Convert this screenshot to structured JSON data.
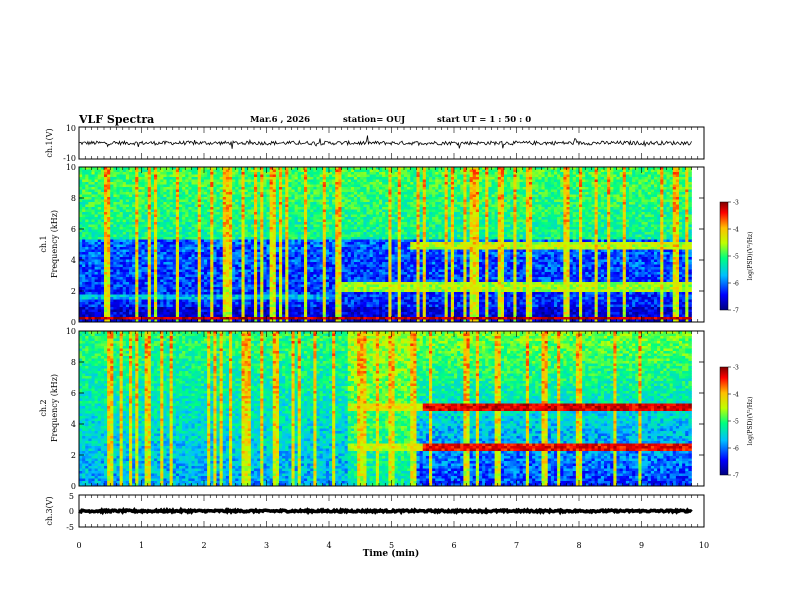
{
  "header": {
    "title": "VLF Spectra",
    "date": "Mar.6 , 2026",
    "station": "station= OUJ",
    "start": "start UT = 1 : 50 : 0"
  },
  "colors": {
    "colormap": [
      "#00007f",
      "#0000ff",
      "#00bfff",
      "#00ff7f",
      "#bfff00",
      "#ffbf00",
      "#ff0000",
      "#7f0000"
    ]
  },
  "chart_data": [
    {
      "type": "line",
      "panel": "ch1-waveform",
      "ylabel": "ch.1(V)",
      "ylim": [
        -10,
        10
      ],
      "yticks": [
        "10",
        "-10"
      ],
      "xlim": [
        0,
        10
      ],
      "baseline": 0,
      "noise_amplitude": 1.2
    },
    {
      "type": "heatmap",
      "panel": "ch1-spectrogram",
      "ylabel": "ch.1\nFrequency (kHz)",
      "ylim": [
        0,
        10
      ],
      "yticks": [
        "0",
        "2",
        "4",
        "6",
        "8",
        "10"
      ],
      "xlim": [
        0,
        9.8
      ],
      "colorbar": {
        "label": "log(PSD)(V²/Hz)",
        "ticks": [
          "-3",
          "-4",
          "-5",
          "-6",
          "-7"
        ],
        "range": [
          -7,
          -3
        ]
      },
      "bands": [
        {
          "x0": 0,
          "x1": 9.8,
          "f0": 0.2,
          "f1": 0.4,
          "level": -3.3
        },
        {
          "x0": 0,
          "x1": 4.2,
          "f0": 1.4,
          "f1": 1.8,
          "level": -5.8
        },
        {
          "x0": 4.2,
          "x1": 9.8,
          "f0": 2.0,
          "f1": 2.6,
          "level": -4.8
        },
        {
          "x0": 5.3,
          "x1": 9.8,
          "f0": 4.6,
          "f1": 5.2,
          "level": -4.7
        }
      ]
    },
    {
      "type": "heatmap",
      "panel": "ch2-spectrogram",
      "ylabel": "ch.2\nFrequency (kHz)",
      "ylim": [
        0,
        10
      ],
      "yticks": [
        "0",
        "2",
        "4",
        "6",
        "8",
        "10"
      ],
      "xlim": [
        0,
        9.8
      ],
      "colorbar": {
        "label": "log(PSD)(V²/Hz)",
        "ticks": [
          "-3",
          "-4",
          "-5",
          "-6",
          "-7"
        ],
        "range": [
          -7,
          -3
        ]
      },
      "bands": [
        {
          "x0": 4.3,
          "x1": 5.5,
          "f0": 4.8,
          "f1": 5.3,
          "level": -4.5
        },
        {
          "x0": 5.5,
          "x1": 9.8,
          "f0": 4.8,
          "f1": 5.3,
          "level": -3.4
        },
        {
          "x0": 4.3,
          "x1": 5.5,
          "f0": 2.3,
          "f1": 2.8,
          "level": -4.6
        },
        {
          "x0": 5.5,
          "x1": 9.8,
          "f0": 2.3,
          "f1": 2.8,
          "level": -3.5
        }
      ]
    },
    {
      "type": "line",
      "panel": "ch3-waveform",
      "ylabel": "ch.3(V)",
      "ylim": [
        -5,
        5
      ],
      "yticks": [
        "5",
        "0",
        "-5"
      ],
      "xlim": [
        0,
        10
      ],
      "baseline": 0,
      "noise_amplitude": 0.3
    },
    {
      "type": "axis",
      "panel": "time-axis",
      "xlabel": "Time (min)",
      "xlim": [
        0,
        10
      ],
      "xticks": [
        "0",
        "1",
        "2",
        "3",
        "4",
        "5",
        "6",
        "7",
        "8",
        "9",
        "10"
      ]
    }
  ]
}
